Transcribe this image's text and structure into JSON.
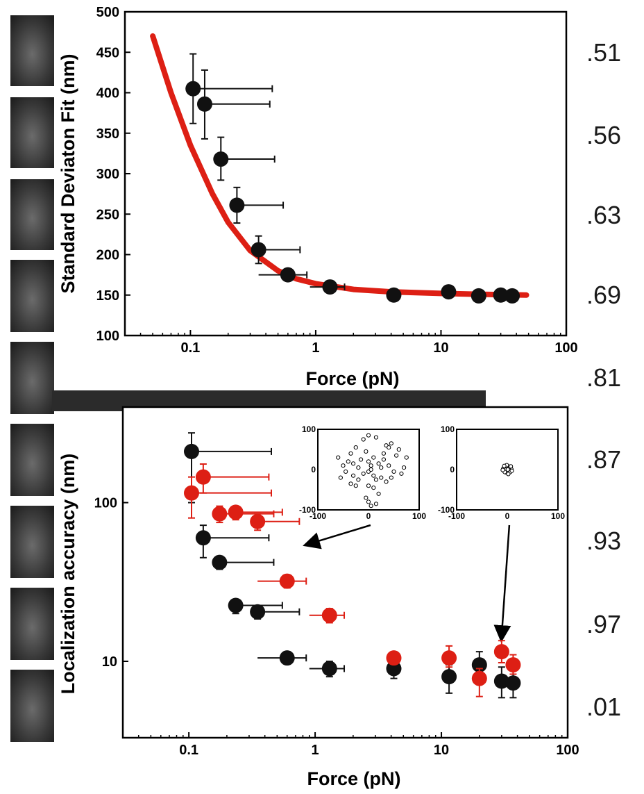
{
  "figure": {
    "side_labels": [
      ".51",
      ".56",
      ".63",
      ".69",
      ".81",
      ".87",
      ".93",
      ".97",
      ".01"
    ]
  },
  "colors": {
    "black_series": "#111111",
    "red_series": "#dd1f14",
    "fit_line": "#dd1f14"
  },
  "chart_data": [
    {
      "id": "top",
      "type": "scatter",
      "title": "",
      "xlabel": "Force (pN)",
      "ylabel": "Standard Deviaton Fit (nm)",
      "xscale": "log",
      "xlim": [
        0.03,
        100
      ],
      "ylim": [
        100,
        500
      ],
      "xticks": [
        0.1,
        1,
        10,
        100
      ],
      "xtick_labels": [
        "0.1",
        "1",
        "10",
        "100"
      ],
      "yticks": [
        100,
        150,
        200,
        250,
        300,
        350,
        400,
        450,
        500
      ],
      "ytick_labels": [
        "100",
        "150",
        "200",
        "250",
        "300",
        "350",
        "400",
        "450",
        "500"
      ],
      "grid": false,
      "series": [
        {
          "color": "#111111",
          "points": [
            {
              "x": 0.105,
              "y": 405,
              "xerr": [
                0.105,
                0.45
              ],
              "yerr": [
                362,
                448
              ]
            },
            {
              "x": 0.13,
              "y": 386,
              "xerr": [
                0.13,
                0.43
              ],
              "yerr": [
                343,
                428
              ]
            },
            {
              "x": 0.175,
              "y": 318,
              "xerr": [
                0.175,
                0.47
              ],
              "yerr": [
                292,
                345
              ]
            },
            {
              "x": 0.235,
              "y": 261,
              "xerr": [
                0.235,
                0.55
              ],
              "yerr": [
                239,
                283
              ]
            },
            {
              "x": 0.35,
              "y": 206,
              "xerr": [
                0.35,
                0.75
              ],
              "yerr": [
                189,
                223
              ]
            },
            {
              "x": 0.6,
              "y": 175,
              "xerr": [
                0.35,
                0.85
              ],
              "yerr": [
                172,
                178
              ]
            },
            {
              "x": 1.3,
              "y": 160,
              "xerr": [
                0.9,
                1.7
              ],
              "yerr": [
                157,
                163
              ]
            },
            {
              "x": 4.2,
              "y": 150
            },
            {
              "x": 11.5,
              "y": 154
            },
            {
              "x": 20,
              "y": 149
            },
            {
              "x": 30,
              "y": 150
            },
            {
              "x": 37,
              "y": 149
            }
          ]
        }
      ],
      "fit": {
        "color": "#dd1f14",
        "points": [
          [
            0.05,
            470
          ],
          [
            0.07,
            400
          ],
          [
            0.1,
            335
          ],
          [
            0.15,
            275
          ],
          [
            0.2,
            240
          ],
          [
            0.3,
            205
          ],
          [
            0.5,
            180
          ],
          [
            0.7,
            170
          ],
          [
            1,
            164
          ],
          [
            2,
            157
          ],
          [
            4,
            154
          ],
          [
            10,
            152
          ],
          [
            20,
            151
          ],
          [
            48,
            150
          ]
        ]
      }
    },
    {
      "id": "bottom",
      "type": "scatter",
      "title": "",
      "xlabel": "Force (pN)",
      "ylabel": "Localization accuracy (nm)",
      "xscale": "log",
      "yscale": "log",
      "xlim": [
        0.03,
        100
      ],
      "ylim": [
        3.3,
        400
      ],
      "xticks": [
        0.1,
        1,
        10,
        100
      ],
      "xtick_labels": [
        "0.1",
        "1",
        "10",
        "100"
      ],
      "yticks": [
        10,
        100
      ],
      "ytick_labels": [
        "10",
        "100"
      ],
      "grid": false,
      "series": [
        {
          "color": "#111111",
          "points": [
            {
              "x": 0.105,
              "y": 210,
              "xerr": [
                0.105,
                0.45
              ],
              "yerr": [
                100,
                275
              ]
            },
            {
              "x": 0.13,
              "y": 60,
              "xerr": [
                0.13,
                0.43
              ],
              "yerr": [
                45,
                72
              ]
            },
            {
              "x": 0.175,
              "y": 42,
              "xerr": [
                0.175,
                0.47
              ],
              "yerr": [
                38,
                46
              ]
            },
            {
              "x": 0.235,
              "y": 22.5,
              "xerr": [
                0.235,
                0.55
              ],
              "yerr": [
                20,
                24.5
              ]
            },
            {
              "x": 0.35,
              "y": 20.5,
              "xerr": [
                0.35,
                0.75
              ],
              "yerr": [
                18.5,
                22.5
              ]
            },
            {
              "x": 0.6,
              "y": 10.5,
              "xerr": [
                0.35,
                0.85
              ],
              "yerr": [
                9.6,
                11.5
              ]
            },
            {
              "x": 1.3,
              "y": 9.0,
              "xerr": [
                0.9,
                1.7
              ],
              "yerr": [
                8.0,
                10.0
              ]
            },
            {
              "x": 4.2,
              "y": 9.0,
              "yerr": [
                7.8,
                10.2
              ]
            },
            {
              "x": 11.5,
              "y": 8.0,
              "yerr": [
                6.3,
                9.5
              ]
            },
            {
              "x": 20,
              "y": 9.5,
              "yerr": [
                7.8,
                11.5
              ]
            },
            {
              "x": 30,
              "y": 7.5,
              "yerr": [
                5.9,
                9.2
              ]
            },
            {
              "x": 37,
              "y": 7.3,
              "yerr": [
                5.9,
                8.8
              ]
            }
          ]
        },
        {
          "color": "#dd1f14",
          "points": [
            {
              "x": 0.105,
              "y": 115,
              "xerr": [
                0.105,
                0.45
              ],
              "yerr": [
                80,
                145
              ]
            },
            {
              "x": 0.13,
              "y": 145,
              "xerr": [
                0.13,
                0.43
              ],
              "yerr": [
                115,
                175
              ]
            },
            {
              "x": 0.175,
              "y": 85,
              "xerr": [
                0.175,
                0.47
              ],
              "yerr": [
                75,
                95
              ]
            },
            {
              "x": 0.235,
              "y": 87,
              "xerr": [
                0.235,
                0.55
              ],
              "yerr": [
                78,
                95
              ]
            },
            {
              "x": 0.35,
              "y": 76,
              "xerr": [
                0.35,
                0.75
              ],
              "yerr": [
                67,
                85
              ]
            },
            {
              "x": 0.6,
              "y": 32,
              "xerr": [
                0.35,
                0.85
              ],
              "yerr": [
                29,
                35
              ]
            },
            {
              "x": 1.3,
              "y": 19.5,
              "xerr": [
                0.9,
                1.7
              ],
              "yerr": [
                17.5,
                21.5
              ]
            },
            {
              "x": 4.2,
              "y": 10.5,
              "yerr": [
                9.6,
                11.5
              ]
            },
            {
              "x": 11.5,
              "y": 10.5,
              "yerr": [
                9.2,
                12.5
              ]
            },
            {
              "x": 20,
              "y": 7.8,
              "yerr": [
                6.0,
                9.0
              ]
            },
            {
              "x": 30,
              "y": 11.5,
              "yerr": [
                9.8,
                13.5
              ]
            },
            {
              "x": 37,
              "y": 9.5,
              "yerr": [
                8.3,
                11.0
              ]
            }
          ]
        }
      ],
      "insets": [
        {
          "id": "inset-left",
          "xlim": [
            -100,
            100
          ],
          "ylim": [
            -100,
            100
          ],
          "xtick_labels": [
            "-100",
            "0",
            "100"
          ],
          "ytick_labels": [
            "100",
            "0",
            "-100"
          ],
          "points": [
            [
              -35,
              40
            ],
            [
              -25,
              55
            ],
            [
              -10,
              75
            ],
            [
              0,
              85
            ],
            [
              15,
              80
            ],
            [
              35,
              60
            ],
            [
              40,
              55
            ],
            [
              45,
              65
            ],
            [
              30,
              40
            ],
            [
              55,
              35
            ],
            [
              60,
              50
            ],
            [
              75,
              30
            ],
            [
              10,
              30
            ],
            [
              -40,
              20
            ],
            [
              -30,
              15
            ],
            [
              -20,
              5
            ],
            [
              -15,
              25
            ],
            [
              0,
              20
            ],
            [
              5,
              10
            ],
            [
              20,
              15
            ],
            [
              25,
              5
            ],
            [
              40,
              10
            ],
            [
              50,
              -5
            ],
            [
              65,
              -10
            ],
            [
              -50,
              10
            ],
            [
              -45,
              -5
            ],
            [
              -30,
              -15
            ],
            [
              -20,
              -25
            ],
            [
              -10,
              -10
            ],
            [
              0,
              -5
            ],
            [
              5,
              0
            ],
            [
              10,
              -15
            ],
            [
              15,
              -25
            ],
            [
              25,
              -20
            ],
            [
              35,
              -30
            ],
            [
              45,
              -20
            ],
            [
              -35,
              -35
            ],
            [
              -25,
              -40
            ],
            [
              0,
              -40
            ],
            [
              10,
              -45
            ],
            [
              20,
              -60
            ],
            [
              -5,
              -70
            ],
            [
              0,
              -80
            ],
            [
              5,
              -90
            ],
            [
              15,
              -85
            ],
            [
              -60,
              30
            ],
            [
              -55,
              -20
            ],
            [
              70,
              5
            ],
            [
              30,
              25
            ],
            [
              -5,
              45
            ]
          ],
          "arrow_to": {
            "x": 0.9,
            "y": 55
          }
        },
        {
          "id": "inset-right",
          "xlim": [
            -100,
            100
          ],
          "ylim": [
            -100,
            100
          ],
          "xtick_labels": [
            "-100",
            "0",
            "100"
          ],
          "ytick_labels": [
            "100",
            "0",
            "-100"
          ],
          "points": [
            [
              -6,
              6
            ],
            [
              -3,
              9
            ],
            [
              2,
              8
            ],
            [
              6,
              5
            ],
            [
              8,
              1
            ],
            [
              5,
              -4
            ],
            [
              2,
              -8
            ],
            [
              -3,
              -7
            ],
            [
              -7,
              -3
            ],
            [
              -8,
              2
            ],
            [
              -4,
              3
            ],
            [
              0,
              4
            ],
            [
              3,
              2
            ],
            [
              4,
              -2
            ],
            [
              0,
              -3
            ],
            [
              -2,
              0
            ],
            [
              1,
              0
            ],
            [
              -5,
              -6
            ],
            [
              6,
              -6
            ],
            [
              -1,
              11
            ],
            [
              9,
              -3
            ],
            [
              -9,
              -1
            ],
            [
              2,
              -11
            ],
            [
              -6,
              9
            ],
            [
              7,
              8
            ]
          ],
          "arrow_to": {
            "x": 30,
            "y": 14.5
          }
        }
      ]
    }
  ]
}
